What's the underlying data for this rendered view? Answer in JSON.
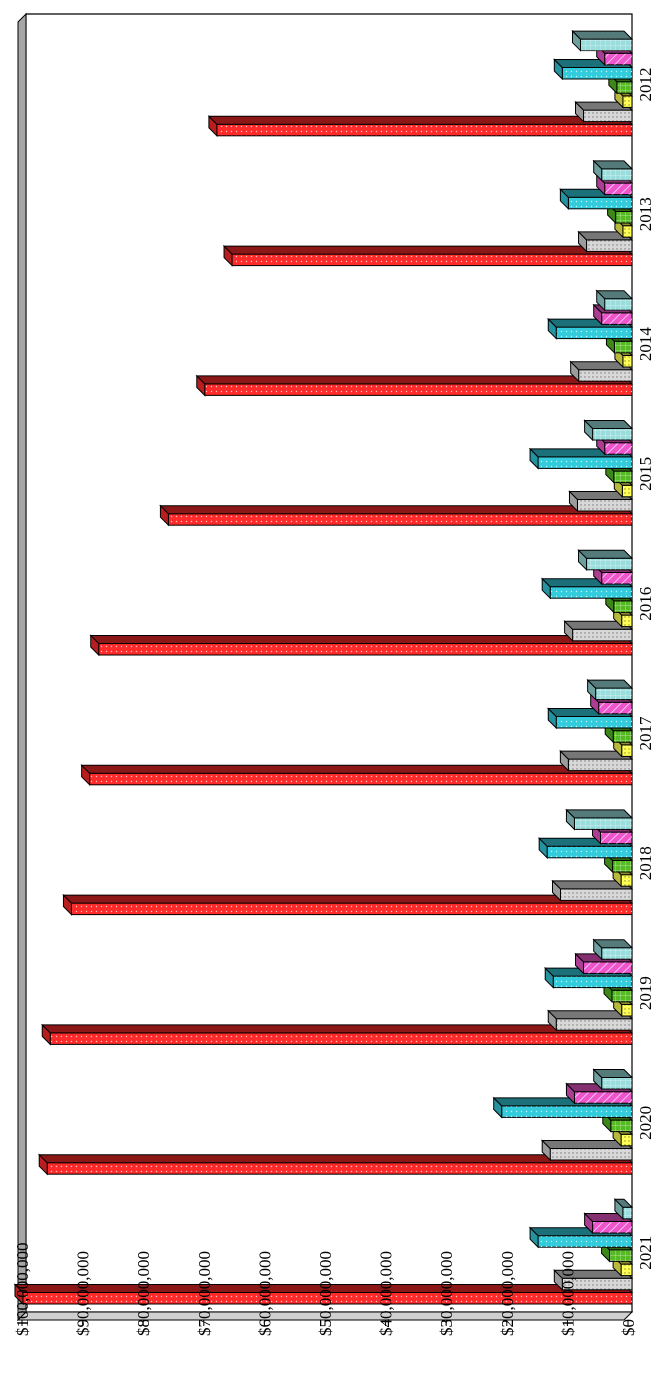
{
  "chart_data": {
    "type": "bar",
    "orientation": "horizontal, page rotated 90 degrees",
    "style": "3d",
    "title": "",
    "xlabel": "",
    "ylabel": "",
    "categories": [
      "2012",
      "2013",
      "2014",
      "2015",
      "2016",
      "2017",
      "2018",
      "2019",
      "2020",
      "2021"
    ],
    "value_ticks": [
      "$0",
      "$10,000,000",
      "$20,000,000",
      "$30,000,000",
      "$40,000,000",
      "$50,000,000",
      "$60,000,000",
      "$70,000,000",
      "$80,000,000",
      "$90,000,000",
      "$100,000,000"
    ],
    "ylim": [
      0,
      100000000
    ],
    "grid": false,
    "legend": "none",
    "series": [
      {
        "color": "#ff2a2a",
        "values": [
          68500000,
          66000000,
          70500000,
          76500000,
          88000000,
          89500000,
          92500000,
          96000000,
          96500000,
          100500000
        ]
      },
      {
        "color": "#d8d8d8",
        "values": [
          8000000,
          7500000,
          8800000,
          9000000,
          9800000,
          10500000,
          11800000,
          12500000,
          13500000,
          11500000
        ]
      },
      {
        "color": "#ffff55",
        "values": [
          1500000,
          1500000,
          1500000,
          1600000,
          1700000,
          1700000,
          1800000,
          1700000,
          1800000,
          1800000
        ]
      },
      {
        "color": "#55bb22",
        "values": [
          2500000,
          2700000,
          2900000,
          3000000,
          3000000,
          3100000,
          3200000,
          3300000,
          3500000,
          3700000
        ]
      },
      {
        "color": "#33ccdd",
        "values": [
          11500000,
          10500000,
          12500000,
          15500000,
          13500000,
          12500000,
          14000000,
          13000000,
          21500000,
          15500000
        ]
      },
      {
        "color": "#ee55cc",
        "values": [
          4500000,
          4500000,
          5000000,
          4500000,
          5000000,
          5500000,
          5200000,
          8000000,
          9500000,
          6500000
        ]
      },
      {
        "color": "#99dddd",
        "values": [
          8500000,
          5000000,
          4500000,
          6500000,
          7500000,
          6000000,
          9500000,
          5000000,
          5000000,
          1500000
        ]
      }
    ]
  }
}
